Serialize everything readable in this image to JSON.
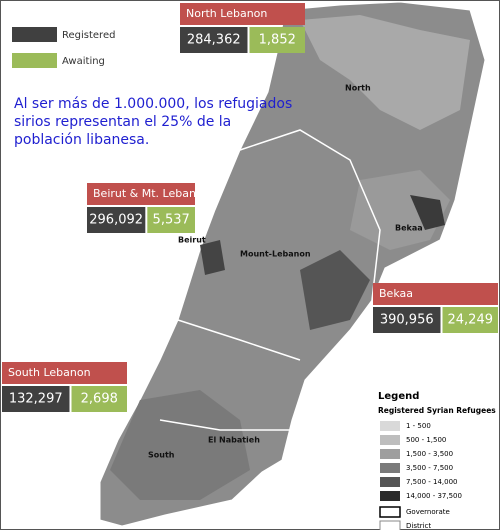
{
  "legend_top": {
    "registered": "Registered",
    "awaiting": "Awaiting"
  },
  "annotation": [
    "Al ser más de 1.000.000, los refugiados",
    "sirios representan el 25% de la",
    "población libanesa."
  ],
  "regions": [
    {
      "name": "North Lebanon",
      "registered": "284,362",
      "awaiting": "1,852"
    },
    {
      "name": "Beirut & Mt. Lebanon",
      "registered": "296,092",
      "awaiting": "5,537"
    },
    {
      "name": "Bekaa",
      "registered": "390,956",
      "awaiting": "24,249"
    },
    {
      "name": "South Lebanon",
      "registered": "132,297",
      "awaiting": "2,698"
    }
  ],
  "map_labels": [
    "North",
    "Beirut",
    "Mount-Lebanon",
    "Bekaa",
    "El Nabatieh",
    "South"
  ],
  "legend": {
    "title": "Legend",
    "subtitle": "Registered Syrian Refugees",
    "classes": [
      "1 - 500",
      "500 - 1,500",
      "1,500 - 3,500",
      "3,500 - 7,500",
      "7,500 - 14,000",
      "14,000 - 37,500"
    ],
    "governorate": "Governorate",
    "district": "District"
  }
}
